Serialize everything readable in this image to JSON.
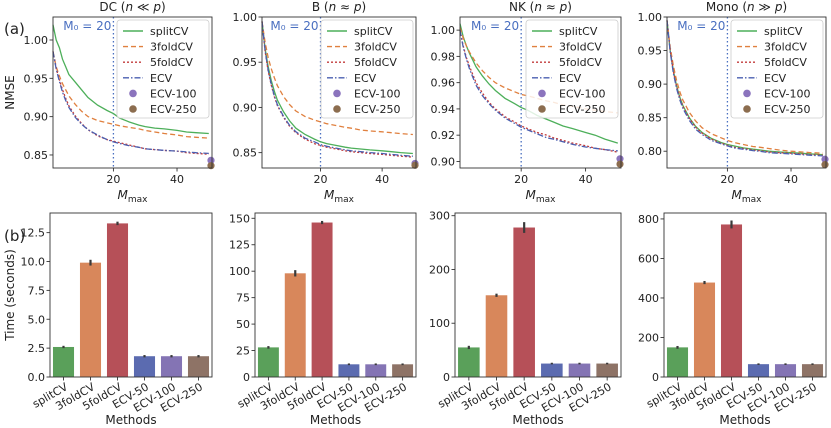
{
  "row_labels": [
    "(a)",
    "(b)"
  ],
  "chart_data": [
    {
      "type": "line",
      "title": "DC (n ≪ p)",
      "xlabel": "M_max",
      "ylabel": "NMSE",
      "xlim": [
        1,
        51
      ],
      "ylim": [
        0.833,
        1.03
      ],
      "xticks": [
        20,
        40
      ],
      "yticks": [
        0.85,
        0.9,
        0.95,
        1.0
      ],
      "vline": {
        "x": 20,
        "label": "M₀ = 20"
      },
      "x": [
        1,
        2,
        3,
        4,
        5,
        6,
        8,
        10,
        12,
        15,
        18,
        20,
        22,
        25,
        28,
        30,
        33,
        36,
        40,
        43,
        46,
        50
      ],
      "series": [
        {
          "name": "splitCV",
          "color": "#4daf5a",
          "dash": "",
          "values": [
            1.02,
            1.0,
            0.99,
            0.975,
            0.965,
            0.955,
            0.945,
            0.935,
            0.925,
            0.915,
            0.908,
            0.904,
            0.898,
            0.893,
            0.889,
            0.887,
            0.885,
            0.884,
            0.882,
            0.88,
            0.879,
            0.878
          ]
        },
        {
          "name": "3foldCV",
          "color": "#e0803f",
          "dash": "5,3",
          "values": [
            0.985,
            0.965,
            0.953,
            0.943,
            0.935,
            0.927,
            0.916,
            0.907,
            0.9,
            0.895,
            0.892,
            0.89,
            0.888,
            0.886,
            0.884,
            0.882,
            0.88,
            0.878,
            0.876,
            0.874,
            0.873,
            0.872
          ]
        },
        {
          "name": "5foldCV",
          "color": "#c23b3b",
          "dash": "2,2",
          "values": [
            0.985,
            0.963,
            0.948,
            0.935,
            0.924,
            0.914,
            0.901,
            0.891,
            0.883,
            0.875,
            0.87,
            0.868,
            0.866,
            0.863,
            0.86,
            0.858,
            0.857,
            0.856,
            0.855,
            0.853,
            0.852,
            0.851
          ]
        },
        {
          "name": "ECV",
          "color": "#4a5fb0",
          "dash": "6,2,1.5,2",
          "values": [
            0.985,
            0.962,
            0.946,
            0.932,
            0.921,
            0.912,
            0.899,
            0.89,
            0.883,
            0.876,
            0.87,
            0.867,
            0.865,
            0.862,
            0.86,
            0.858,
            0.857,
            0.856,
            0.855,
            0.854,
            0.853,
            0.852
          ]
        }
      ],
      "points": [
        {
          "name": "ECV-100",
          "color": "#8b74bd",
          "x": 51,
          "y": 0.843
        },
        {
          "name": "ECV-250",
          "color": "#8c6d4f",
          "x": 51,
          "y": 0.836
        }
      ],
      "legend": "top-right"
    },
    {
      "type": "line",
      "title": "B (n ≈ p)",
      "xlabel": "M_max",
      "ylabel": "",
      "xlim": [
        1,
        51
      ],
      "ylim": [
        0.833,
        1.0
      ],
      "xticks": [
        20,
        40
      ],
      "yticks": [
        0.85,
        0.9,
        0.95,
        1.0
      ],
      "vline": {
        "x": 20,
        "label": "M₀ = 20"
      },
      "x": [
        1,
        2,
        3,
        4,
        5,
        6,
        8,
        10,
        12,
        15,
        18,
        20,
        22,
        25,
        28,
        30,
        33,
        36,
        40,
        43,
        46,
        50
      ],
      "series": [
        {
          "name": "splitCV",
          "color": "#4daf5a",
          "dash": "",
          "values": [
            0.995,
            0.965,
            0.945,
            0.93,
            0.918,
            0.908,
            0.895,
            0.885,
            0.877,
            0.87,
            0.865,
            0.862,
            0.86,
            0.858,
            0.856,
            0.855,
            0.854,
            0.853,
            0.852,
            0.851,
            0.85,
            0.849
          ]
        },
        {
          "name": "3foldCV",
          "color": "#e0803f",
          "dash": "5,3",
          "values": [
            0.995,
            0.972,
            0.955,
            0.943,
            0.933,
            0.924,
            0.912,
            0.903,
            0.896,
            0.89,
            0.886,
            0.884,
            0.882,
            0.88,
            0.878,
            0.877,
            0.875,
            0.874,
            0.873,
            0.872,
            0.871,
            0.87
          ]
        },
        {
          "name": "5foldCV",
          "color": "#c23b3b",
          "dash": "2,2",
          "values": [
            0.995,
            0.962,
            0.94,
            0.925,
            0.912,
            0.902,
            0.889,
            0.879,
            0.872,
            0.865,
            0.86,
            0.858,
            0.856,
            0.854,
            0.852,
            0.851,
            0.85,
            0.849,
            0.848,
            0.847,
            0.846,
            0.845
          ]
        },
        {
          "name": "ECV",
          "color": "#4a5fb0",
          "dash": "6,2,1.5,2",
          "values": [
            0.995,
            0.963,
            0.941,
            0.926,
            0.913,
            0.903,
            0.89,
            0.88,
            0.873,
            0.866,
            0.862,
            0.859,
            0.857,
            0.855,
            0.853,
            0.852,
            0.851,
            0.85,
            0.849,
            0.848,
            0.847,
            0.846
          ]
        }
      ],
      "points": [
        {
          "name": "ECV-100",
          "color": "#8b74bd",
          "x": 51,
          "y": 0.838
        },
        {
          "name": "ECV-250",
          "color": "#8c6d4f",
          "x": 51,
          "y": 0.836
        }
      ],
      "legend": "top-right"
    },
    {
      "type": "line",
      "title": "NK (n ≈ p)",
      "xlabel": "M_max",
      "ylabel": "",
      "xlim": [
        1,
        51
      ],
      "ylim": [
        0.895,
        1.01
      ],
      "xticks": [
        20,
        40
      ],
      "yticks": [
        0.9,
        0.92,
        0.94,
        0.96,
        0.98,
        1.0
      ],
      "vline": {
        "x": 20,
        "label": "M₀ = 20"
      },
      "x": [
        1,
        2,
        3,
        4,
        5,
        6,
        8,
        10,
        12,
        15,
        18,
        20,
        22,
        25,
        28,
        30,
        33,
        36,
        40,
        43,
        46,
        50
      ],
      "series": [
        {
          "name": "splitCV",
          "color": "#4daf5a",
          "dash": "",
          "values": [
            1.005,
            0.995,
            0.988,
            0.982,
            0.977,
            0.972,
            0.965,
            0.959,
            0.954,
            0.948,
            0.944,
            0.941,
            0.939,
            0.935,
            0.932,
            0.93,
            0.927,
            0.925,
            0.922,
            0.92,
            0.917,
            0.914
          ]
        },
        {
          "name": "3foldCV",
          "color": "#e0803f",
          "dash": "5,3",
          "values": [
            1.002,
            0.994,
            0.988,
            0.983,
            0.979,
            0.975,
            0.969,
            0.964,
            0.96,
            0.956,
            0.953,
            0.951,
            0.95,
            0.948,
            0.946,
            0.945,
            0.943,
            0.942,
            0.94,
            0.939,
            0.938,
            0.937
          ]
        },
        {
          "name": "5foldCV",
          "color": "#c23b3b",
          "dash": "2,2",
          "values": [
            1.0,
            0.988,
            0.979,
            0.972,
            0.966,
            0.96,
            0.952,
            0.945,
            0.94,
            0.934,
            0.93,
            0.927,
            0.925,
            0.922,
            0.92,
            0.918,
            0.916,
            0.914,
            0.912,
            0.91,
            0.909,
            0.907
          ]
        },
        {
          "name": "ECV",
          "color": "#4a5fb0",
          "dash": "6,2,1.5,2",
          "values": [
            1.0,
            0.987,
            0.978,
            0.97,
            0.964,
            0.958,
            0.95,
            0.944,
            0.939,
            0.933,
            0.929,
            0.926,
            0.924,
            0.921,
            0.918,
            0.917,
            0.915,
            0.913,
            0.911,
            0.91,
            0.909,
            0.908
          ]
        }
      ],
      "points": [
        {
          "name": "ECV-100",
          "color": "#8b74bd",
          "x": 51,
          "y": 0.902
        },
        {
          "name": "ECV-250",
          "color": "#8c6d4f",
          "x": 51,
          "y": 0.898
        }
      ],
      "legend": "top-right"
    },
    {
      "type": "line",
      "title": "Mono (n ≫ p)",
      "xlabel": "M_max",
      "ylabel": "",
      "xlim": [
        1,
        51
      ],
      "ylim": [
        0.775,
        1.0
      ],
      "xticks": [
        20,
        40
      ],
      "yticks": [
        0.8,
        0.85,
        0.9,
        0.95,
        1.0
      ],
      "vline": {
        "x": 20,
        "label": "M₀ = 20"
      },
      "x": [
        1,
        2,
        3,
        4,
        5,
        6,
        8,
        10,
        12,
        15,
        18,
        20,
        22,
        25,
        28,
        30,
        33,
        36,
        40,
        43,
        46,
        50
      ],
      "series": [
        {
          "name": "splitCV",
          "color": "#4daf5a",
          "dash": "",
          "values": [
            0.995,
            0.95,
            0.92,
            0.898,
            0.881,
            0.868,
            0.85,
            0.837,
            0.828,
            0.819,
            0.813,
            0.81,
            0.808,
            0.805,
            0.803,
            0.802,
            0.8,
            0.799,
            0.798,
            0.797,
            0.796,
            0.795
          ]
        },
        {
          "name": "3foldCV",
          "color": "#e0803f",
          "dash": "5,3",
          "values": [
            0.995,
            0.955,
            0.927,
            0.906,
            0.889,
            0.876,
            0.858,
            0.845,
            0.835,
            0.826,
            0.82,
            0.816,
            0.813,
            0.81,
            0.807,
            0.806,
            0.804,
            0.802,
            0.8,
            0.799,
            0.798,
            0.797
          ]
        },
        {
          "name": "5foldCV",
          "color": "#c23b3b",
          "dash": "2,2",
          "values": [
            0.995,
            0.95,
            0.919,
            0.897,
            0.88,
            0.867,
            0.849,
            0.836,
            0.827,
            0.818,
            0.812,
            0.809,
            0.806,
            0.804,
            0.802,
            0.801,
            0.799,
            0.798,
            0.797,
            0.796,
            0.795,
            0.794
          ]
        },
        {
          "name": "ECV",
          "color": "#4a5fb0",
          "dash": "6,2,1.5,2",
          "values": [
            0.995,
            0.948,
            0.916,
            0.894,
            0.877,
            0.864,
            0.846,
            0.833,
            0.825,
            0.816,
            0.811,
            0.808,
            0.805,
            0.803,
            0.801,
            0.8,
            0.798,
            0.797,
            0.796,
            0.795,
            0.794,
            0.793
          ]
        }
      ],
      "points": [
        {
          "name": "ECV-100",
          "color": "#8b74bd",
          "x": 51,
          "y": 0.788
        },
        {
          "name": "ECV-250",
          "color": "#8c6d4f",
          "x": 51,
          "y": 0.78
        }
      ],
      "legend": "top-right"
    },
    {
      "type": "bar",
      "title": "",
      "xlabel": "Methods",
      "ylabel": "Time (seconds)",
      "ylim": [
        0,
        14.2
      ],
      "yticks": [
        0.0,
        2.5,
        5.0,
        7.5,
        10.0,
        12.5
      ],
      "ytick_labels": [
        "0.0",
        "2.5",
        "5.0",
        "7.5",
        "10.0",
        "12.5"
      ],
      "categories": [
        "splitCV",
        "3foldCV",
        "5foldCV",
        "ECV-50",
        "ECV-100",
        "ECV-250"
      ],
      "values": [
        2.6,
        9.9,
        13.3,
        1.8,
        1.8,
        1.8
      ],
      "errors": [
        0.1,
        0.25,
        0.15,
        0.1,
        0.1,
        0.1
      ],
      "colors": [
        "#5aa05a",
        "#d8875b",
        "#b65058",
        "#5b6bb0",
        "#8474b4",
        "#8e7366"
      ]
    },
    {
      "type": "bar",
      "title": "",
      "xlabel": "Methods",
      "ylabel": "",
      "ylim": [
        0,
        155
      ],
      "yticks": [
        0,
        25,
        50,
        75,
        100,
        125,
        150
      ],
      "ytick_labels": [
        "0",
        "25",
        "50",
        "75",
        "100",
        "125",
        "150"
      ],
      "categories": [
        "splitCV",
        "3foldCV",
        "5foldCV",
        "ECV-50",
        "ECV-100",
        "ECV-250"
      ],
      "values": [
        28,
        98,
        146,
        12,
        12,
        12
      ],
      "errors": [
        1.2,
        3,
        1.5,
        0.8,
        0.8,
        0.8
      ],
      "colors": [
        "#5aa05a",
        "#d8875b",
        "#b65058",
        "#5b6bb0",
        "#8474b4",
        "#8e7366"
      ]
    },
    {
      "type": "bar",
      "title": "",
      "xlabel": "Methods",
      "ylabel": "",
      "ylim": [
        0,
        305
      ],
      "yticks": [
        0,
        100,
        200,
        300
      ],
      "ytick_labels": [
        "0",
        "100",
        "200",
        "300"
      ],
      "categories": [
        "splitCV",
        "3foldCV",
        "5foldCV",
        "ECV-50",
        "ECV-100",
        "ECV-250"
      ],
      "values": [
        55,
        152,
        278,
        25,
        25,
        25
      ],
      "errors": [
        3,
        3,
        10,
        1.5,
        1.5,
        1.5
      ],
      "colors": [
        "#5aa05a",
        "#d8875b",
        "#b65058",
        "#5b6bb0",
        "#8474b4",
        "#8e7366"
      ]
    },
    {
      "type": "bar",
      "title": "",
      "xlabel": "Methods",
      "ylabel": "",
      "ylim": [
        0,
        830
      ],
      "yticks": [
        0,
        200,
        400,
        600,
        800
      ],
      "ytick_labels": [
        "0",
        "200",
        "400",
        "600",
        "800"
      ],
      "categories": [
        "splitCV",
        "3foldCV",
        "5foldCV",
        "ECV-50",
        "ECV-100",
        "ECV-250"
      ],
      "values": [
        150,
        478,
        772,
        65,
        65,
        65
      ],
      "errors": [
        7,
        8,
        20,
        4,
        4,
        4
      ],
      "colors": [
        "#5aa05a",
        "#d8875b",
        "#b65058",
        "#5b6bb0",
        "#8474b4",
        "#8e7366"
      ]
    }
  ]
}
